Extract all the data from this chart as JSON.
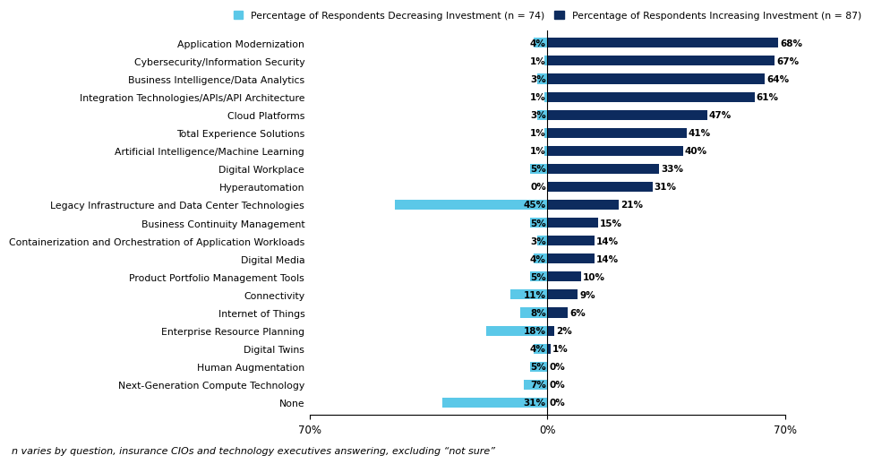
{
  "categories": [
    "Application Modernization",
    "Cybersecurity/Information Security",
    "Business Intelligence/Data Analytics",
    "Integration Technologies/APIs/API Architecture",
    "Cloud Platforms",
    "Total Experience Solutions",
    "Artificial Intelligence/Machine Learning",
    "Digital Workplace",
    "Hyperautomation",
    "Legacy Infrastructure and Data Center Technologies",
    "Business Continuity Management",
    "Containerization and Orchestration of Application Workloads",
    "Digital Media",
    "Product Portfolio Management Tools",
    "Connectivity",
    "Internet of Things",
    "Enterprise Resource Planning",
    "Digital Twins",
    "Human Augmentation",
    "Next-Generation Compute Technology",
    "None"
  ],
  "decreasing": [
    4,
    1,
    3,
    1,
    3,
    1,
    1,
    5,
    0,
    45,
    5,
    3,
    4,
    5,
    11,
    8,
    18,
    4,
    5,
    7,
    31
  ],
  "increasing": [
    68,
    67,
    64,
    61,
    47,
    41,
    40,
    33,
    31,
    21,
    15,
    14,
    14,
    10,
    9,
    6,
    2,
    1,
    0,
    0,
    0
  ],
  "color_decreasing": "#5BC8E8",
  "color_increasing": "#0D2B5E",
  "legend_label_decreasing": "Percentage of Respondents Decreasing Investment (n = 74)",
  "legend_label_increasing": "Percentage of Respondents Increasing Investment (n = 87)",
  "xlim": 70,
  "footnote": "n varies by question, insurance CIOs and technology executives answering, excluding “not sure”",
  "bar_height": 0.55,
  "category_fontsize": 7.8,
  "value_fontsize": 7.5,
  "legend_fontsize": 7.8,
  "tick_fontsize": 8.5,
  "footnote_fontsize": 8.0,
  "bg_color": "#FFFFFF"
}
